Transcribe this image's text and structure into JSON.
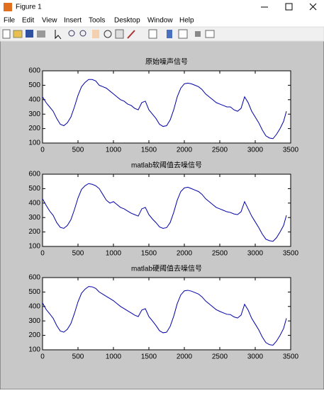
{
  "window": {
    "title": "Figure 1",
    "menu": [
      "File",
      "Edit",
      "View",
      "Insert",
      "Tools",
      "Desktop",
      "Window",
      "Help"
    ]
  },
  "chart_data": [
    {
      "type": "line",
      "title": "原始噪声信号",
      "color": "#0000a8",
      "x": [
        0,
        50,
        100,
        150,
        200,
        250,
        300,
        350,
        400,
        450,
        500,
        550,
        600,
        650,
        700,
        750,
        800,
        850,
        900,
        950,
        1000,
        1050,
        1100,
        1150,
        1200,
        1250,
        1300,
        1350,
        1400,
        1450,
        1500,
        1550,
        1600,
        1650,
        1700,
        1750,
        1800,
        1850,
        1900,
        1950,
        2000,
        2050,
        2100,
        2150,
        2200,
        2250,
        2300,
        2350,
        2400,
        2450,
        2500,
        2550,
        2600,
        2650,
        2700,
        2750,
        2800,
        2850,
        2900,
        2950,
        3000,
        3050,
        3100,
        3150,
        3200,
        3250,
        3300,
        3350,
        3400,
        3440
      ],
      "values": [
        420,
        380,
        350,
        320,
        270,
        230,
        220,
        240,
        280,
        350,
        430,
        490,
        520,
        540,
        540,
        530,
        500,
        490,
        480,
        460,
        440,
        420,
        400,
        390,
        370,
        360,
        340,
        330,
        380,
        390,
        330,
        300,
        270,
        230,
        215,
        220,
        260,
        330,
        420,
        480,
        510,
        515,
        510,
        500,
        490,
        470,
        440,
        420,
        400,
        380,
        370,
        360,
        350,
        350,
        330,
        320,
        340,
        420,
        380,
        320,
        280,
        240,
        190,
        150,
        135,
        130,
        160,
        200,
        250,
        320
      ],
      "xlim": [
        0,
        3500
      ],
      "xticks": [
        0,
        500,
        1000,
        1500,
        2000,
        2500,
        3000,
        3500
      ],
      "ylim": [
        100,
        600
      ],
      "yticks": [
        100,
        200,
        300,
        400,
        500,
        600
      ]
    },
    {
      "type": "line",
      "title": "matlab软阈值去噪信号",
      "color": "#0000a8",
      "x": [
        0,
        50,
        100,
        150,
        200,
        250,
        300,
        350,
        400,
        450,
        500,
        550,
        600,
        650,
        700,
        750,
        800,
        850,
        900,
        950,
        1000,
        1050,
        1100,
        1150,
        1200,
        1250,
        1300,
        1350,
        1400,
        1450,
        1500,
        1550,
        1600,
        1650,
        1700,
        1750,
        1800,
        1850,
        1900,
        1950,
        2000,
        2050,
        2100,
        2150,
        2200,
        2250,
        2300,
        2350,
        2400,
        2450,
        2500,
        2550,
        2600,
        2650,
        2700,
        2750,
        2800,
        2850,
        2900,
        2950,
        3000,
        3050,
        3100,
        3150,
        3200,
        3250,
        3300,
        3350,
        3400,
        3440
      ],
      "values": [
        430,
        385,
        345,
        315,
        265,
        232,
        225,
        245,
        285,
        355,
        435,
        495,
        520,
        535,
        530,
        520,
        500,
        460,
        420,
        400,
        410,
        390,
        370,
        360,
        345,
        330,
        320,
        310,
        360,
        370,
        320,
        290,
        265,
        235,
        225,
        230,
        265,
        335,
        420,
        480,
        505,
        510,
        500,
        490,
        480,
        460,
        430,
        410,
        390,
        370,
        360,
        350,
        340,
        335,
        325,
        320,
        340,
        410,
        360,
        310,
        270,
        230,
        185,
        150,
        140,
        135,
        160,
        200,
        245,
        315
      ],
      "xlim": [
        0,
        3500
      ],
      "xticks": [
        0,
        500,
        1000,
        1500,
        2000,
        2500,
        3000,
        3500
      ],
      "ylim": [
        100,
        600
      ],
      "yticks": [
        100,
        200,
        300,
        400,
        500,
        600
      ]
    },
    {
      "type": "line",
      "title": "matlab硬阈值去噪信号",
      "color": "#0000a8",
      "x": [
        0,
        50,
        100,
        150,
        200,
        250,
        300,
        350,
        400,
        450,
        500,
        550,
        600,
        650,
        700,
        750,
        800,
        850,
        900,
        950,
        1000,
        1050,
        1100,
        1150,
        1200,
        1250,
        1300,
        1350,
        1400,
        1450,
        1500,
        1550,
        1600,
        1650,
        1700,
        1750,
        1800,
        1850,
        1900,
        1950,
        2000,
        2050,
        2100,
        2150,
        2200,
        2250,
        2300,
        2350,
        2400,
        2450,
        2500,
        2550,
        2600,
        2650,
        2700,
        2750,
        2800,
        2850,
        2900,
        2950,
        3000,
        3050,
        3100,
        3150,
        3200,
        3250,
        3300,
        3350,
        3400,
        3440
      ],
      "values": [
        425,
        380,
        350,
        318,
        268,
        230,
        222,
        242,
        282,
        352,
        432,
        492,
        520,
        538,
        536,
        525,
        500,
        485,
        470,
        455,
        440,
        420,
        400,
        385,
        370,
        355,
        340,
        330,
        375,
        385,
        330,
        300,
        268,
        232,
        218,
        222,
        262,
        332,
        420,
        480,
        508,
        512,
        506,
        496,
        486,
        466,
        438,
        418,
        398,
        378,
        366,
        356,
        346,
        344,
        328,
        320,
        340,
        415,
        375,
        318,
        278,
        238,
        188,
        150,
        136,
        132,
        160,
        200,
        248,
        318
      ],
      "xlim": [
        0,
        3500
      ],
      "xticks": [
        0,
        500,
        1000,
        1500,
        2000,
        2500,
        3000,
        3500
      ],
      "ylim": [
        100,
        600
      ],
      "yticks": [
        100,
        200,
        300,
        400,
        500,
        600
      ]
    }
  ]
}
